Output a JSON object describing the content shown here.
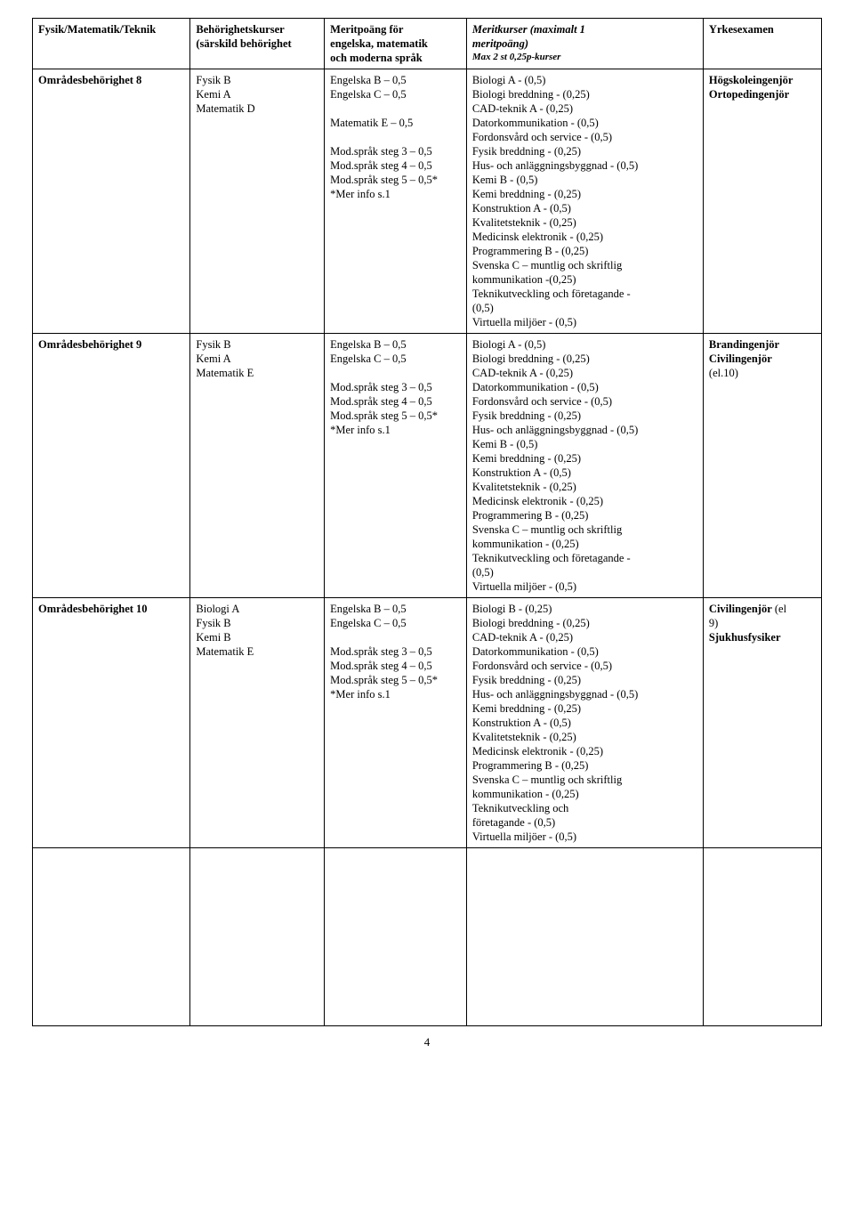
{
  "header": {
    "col1": "Fysik/Matematik/Teknik",
    "col2_line1": "Behörighetskurser",
    "col2_line2": "(särskild behörighet",
    "col3_line1": "Meritpoäng för",
    "col3_line2": "engelska, matematik",
    "col3_line3": "och moderna språk",
    "col4_line1": "Meritkurser  (maximalt 1",
    "col4_line2": "meritpoäng)",
    "col4_line3": "Max 2 st 0,25p-kurser",
    "col5": "Yrkesexamen"
  },
  "rows": [
    {
      "name": "Områdesbehörighet 8",
      "req": [
        "Fysik B",
        "Kemi A",
        "Matematik D"
      ],
      "merit": [
        "Engelska B – 0,5",
        "Engelska C – 0,5",
        "",
        "Matematik E – 0,5",
        "",
        "Mod.språk steg 3 – 0,5",
        "Mod.språk steg 4 – 0,5",
        "Mod.språk steg 5 – 0,5*",
        "*Mer info s.1"
      ],
      "courses": [
        "Biologi A -  (0,5)",
        "Biologi breddning -  (0,25)",
        "CAD-teknik A -  (0,25)",
        "Datorkommunikation -  (0,5)",
        "Fordonsvård och service -  (0,5)",
        "Fysik breddning -  (0,25)",
        "Hus- och anläggningsbyggnad -  (0,5)",
        "Kemi B -  (0,5)",
        "Kemi breddning -  (0,25)",
        "Konstruktion A -  (0,5)",
        "Kvalitetsteknik -  (0,25)",
        "Medicinsk elektronik -  (0,25)",
        "Programmering B -  (0,25)",
        "Svenska C – muntlig och skriftlig",
        "kommunikation -(0,25)",
        "Teknikutveckling och företagande -",
        "(0,5)",
        "Virtuella miljöer -  (0,5)"
      ],
      "exam": [
        "Högskoleingenjör",
        "Ortopedingenjör"
      ]
    },
    {
      "name": "Områdesbehörighet 9",
      "req": [
        "Fysik B",
        "Kemi A",
        "Matematik E"
      ],
      "merit": [
        "Engelska B – 0,5",
        "Engelska C – 0,5",
        "",
        "Mod.språk steg 3 – 0,5",
        "Mod.språk steg 4 – 0,5",
        "Mod.språk steg 5 – 0,5*",
        "*Mer info s.1"
      ],
      "courses": [
        "Biologi A -  (0,5)",
        "Biologi breddning -  (0,25)",
        "CAD-teknik A -  (0,25)",
        "Datorkommunikation -  (0,5)",
        "Fordonsvård och service -  (0,5)",
        "Fysik breddning -  (0,25)",
        "Hus- och anläggningsbyggnad -  (0,5)",
        "Kemi B -  (0,5)",
        "Kemi breddning -  (0,25)",
        "Konstruktion A -  (0,5)",
        "Kvalitetsteknik -  (0,25)",
        "Medicinsk elektronik -  (0,25)",
        "Programmering B -  (0,25)",
        "Svenska C – muntlig och skriftlig",
        "kommunikation -  (0,25)",
        "Teknikutveckling och företagande -",
        "(0,5)",
        "Virtuella miljöer -  (0,5)"
      ],
      "exam": [
        "Brandingenjör",
        "Civilingenjör",
        "(el.10)"
      ]
    },
    {
      "name": "Områdesbehörighet 10",
      "req": [
        "Biologi A",
        "Fysik B",
        "Kemi B",
        "Matematik E"
      ],
      "merit": [
        "Engelska B – 0,5",
        "Engelska C – 0,5",
        "",
        "Mod.språk steg 3 – 0,5",
        "Mod.språk steg 4 – 0,5",
        "Mod.språk steg 5 – 0,5*",
        "*Mer info s.1"
      ],
      "courses": [
        "Biologi B -  (0,25)",
        "Biologi breddning -  (0,25)",
        "CAD-teknik A -  (0,25)",
        "Datorkommunikation -  (0,5)",
        "Fordonsvård och service -  (0,5)",
        "Fysik breddning -  (0,25)",
        "Hus- och anläggningsbyggnad -  (0,5)",
        "Kemi breddning -  (0,25)",
        "Konstruktion A -  (0,5)",
        "Kvalitetsteknik -  (0,25)",
        "Medicinsk elektronik -  (0,25)",
        "Programmering B -  (0,25)",
        "Svenska C – muntlig och skriftlig",
        "kommunikation -  (0,25)",
        "Teknikutveckling och",
        "företagande -  (0,5)",
        "Virtuella miljöer -  (0,5)"
      ],
      "exam_special": [
        {
          "t": "Civilingenjör",
          "b": true
        },
        {
          "t": " (el",
          "b": false
        },
        {
          "t": "9)",
          "b": false,
          "nl": true
        },
        {
          "t": "Sjukhusfysiker",
          "b": true,
          "nl": true
        }
      ]
    }
  ],
  "page_number": "4"
}
